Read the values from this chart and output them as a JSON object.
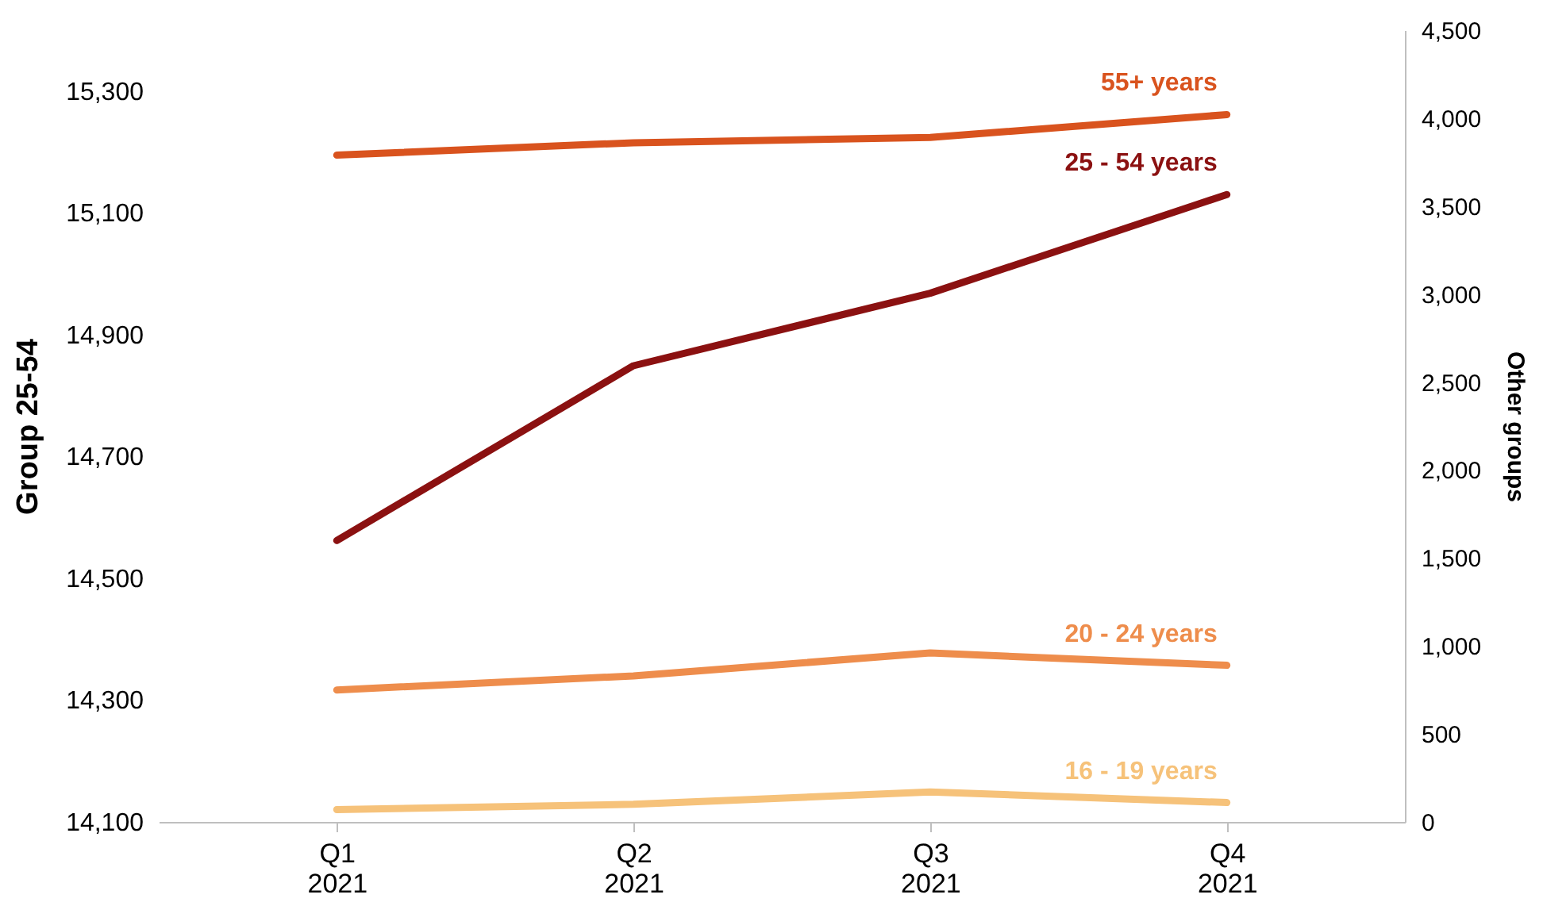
{
  "chart_data": {
    "type": "line",
    "categories": [
      "Q1\n2021",
      "Q2\n2021",
      "Q3\n2021",
      "Q4\n2021"
    ],
    "ylabel": "Group 25-54",
    "y2label": "Other groups",
    "ylim": [
      14100,
      15400
    ],
    "yticks": [
      {
        "value": 14100,
        "label": "14,100"
      },
      {
        "value": 14300,
        "label": "14,300"
      },
      {
        "value": 14500,
        "label": "14,500"
      },
      {
        "value": 14700,
        "label": "14,700"
      },
      {
        "value": 14900,
        "label": "14,900"
      },
      {
        "value": 15100,
        "label": "15,100"
      },
      {
        "value": 15300,
        "label": "15,300"
      }
    ],
    "y2lim": [
      0,
      4500
    ],
    "y2ticks": [
      0,
      500,
      {
        "value": 1000,
        "label": "1,000"
      },
      {
        "value": 1500,
        "label": "1,500"
      },
      {
        "value": 2000,
        "label": "2,000"
      },
      {
        "value": 2500,
        "label": "2,500"
      },
      {
        "value": 3000,
        "label": "3,000"
      },
      {
        "value": 3500,
        "label": "3,500"
      },
      {
        "value": 4000,
        "label": "4,000"
      },
      {
        "value": 4500,
        "label": "4,500"
      }
    ],
    "grid": false,
    "legend": false,
    "marker": "none",
    "line_style": "solid",
    "series": [
      {
        "name": "55+ years",
        "color": "#d9531e",
        "axis": "y2",
        "values": [
          3790,
          3860,
          3890,
          4020
        ]
      },
      {
        "name": "25 - 54  years",
        "color": "#8b1111",
        "axis": "y",
        "values": [
          14562,
          14849,
          14968,
          15130
        ]
      },
      {
        "name": "20 - 24 years",
        "color": "#ee8d4c",
        "axis": "y2",
        "values": [
          750,
          830,
          960,
          890
        ]
      },
      {
        "name": "16 - 19 years",
        "color": "#f6c27a",
        "axis": "y2",
        "values": [
          70,
          100,
          170,
          110
        ]
      }
    ]
  }
}
